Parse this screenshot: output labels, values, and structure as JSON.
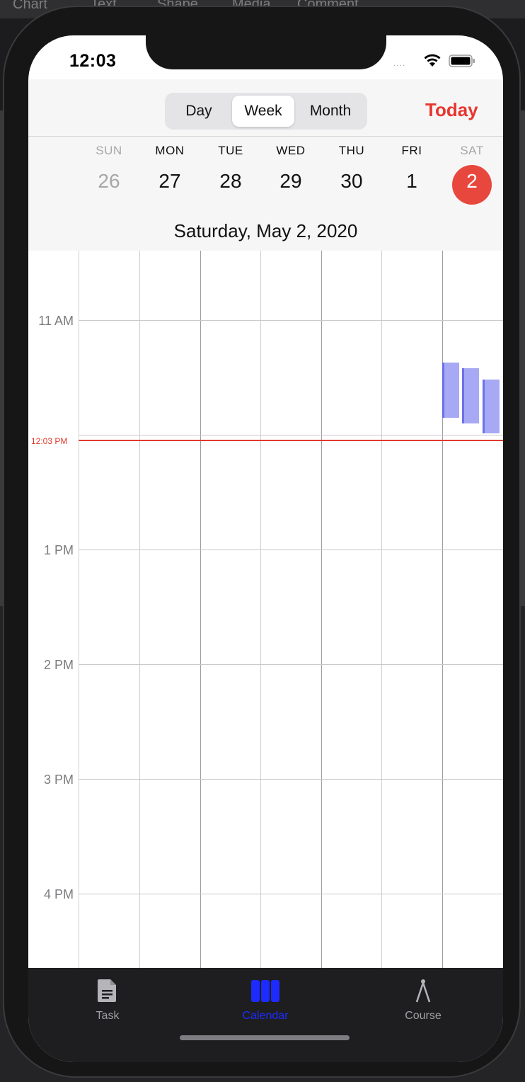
{
  "background_toolbar": [
    "Chart",
    "Text",
    "Shape",
    "Media",
    "Comment"
  ],
  "status_bar": {
    "time": "12:03",
    "signal": "....",
    "wifi_icon": "wifi-icon",
    "battery_icon": "battery-icon"
  },
  "view_modes": {
    "options": [
      "Day",
      "Week",
      "Month"
    ],
    "selected": "Week"
  },
  "today_button": "Today",
  "week": {
    "days": [
      {
        "name": "SUN",
        "date": "26"
      },
      {
        "name": "MON",
        "date": "27"
      },
      {
        "name": "TUE",
        "date": "28"
      },
      {
        "name": "WED",
        "date": "29"
      },
      {
        "name": "THU",
        "date": "30"
      },
      {
        "name": "FRI",
        "date": "1"
      },
      {
        "name": "SAT",
        "date": "2"
      }
    ],
    "selected_date": "2"
  },
  "selected_full_date": "Saturday, May 2, 2020",
  "timeline": {
    "hours": [
      "11 AM",
      "1 PM",
      "2 PM",
      "3 PM",
      "4 PM"
    ],
    "now_label": "12:03 PM",
    "event_color": "#a7a9f4"
  },
  "tabbar": {
    "tabs": [
      {
        "label": "Task",
        "icon": "document-icon"
      },
      {
        "label": "Calendar",
        "icon": "calendar-columns-icon"
      },
      {
        "label": "Course",
        "icon": "compass-icon"
      }
    ],
    "active": "Calendar",
    "active_color": "#1d2bff"
  },
  "accent_color": "#e8362f"
}
